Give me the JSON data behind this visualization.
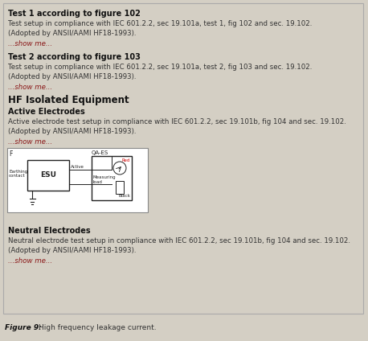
{
  "bg_color": "#d4cfc4",
  "border_color": "#aaaaaa",
  "white_box_color": "#ffffff",
  "text_color": "#333333",
  "bold_color": "#111111",
  "link_color": "#8b1a1a",
  "title": "Test 1 according to figure 102",
  "title2": "Test 2 according to figure 103",
  "title3": "HF Isolated Equipment",
  "subtitle3a": "Active Electrodes",
  "subtitle3b": "Neutral Electrodes",
  "desc1": "Test setup in compliance with IEC 601.2.2, sec 19.101a, test 1, fig 102 and sec. 19.102.\n(Adopted by ANSII/AAMI HF18-1993).",
  "desc2": "Test setup in compliance with IEC 601.2.2, sec 19.101a, test 2, fig 103 and sec. 19.102.\n(Adopted by ANSII/AAMI HF18-1993).",
  "desc3a": "Active electrode test setup in compliance with IEC 601.2.2, sec 19.101b, fig 104 and sec. 19.102.\n(Adopted by ANSII/AAMI HF18-1993).",
  "desc3b": "Neutral electrode test setup in compliance with IEC 601.2.2, sec 19.101b, fig 104 and sec. 19.102.\n(Adopted by ANSII/AAMI HF18-1993).",
  "show_me": "...show me...",
  "figure_label": "Figure 9:",
  "figure_text": "High frequency leakage current.",
  "figsize": [
    4.58,
    4.24
  ],
  "dpi": 100
}
